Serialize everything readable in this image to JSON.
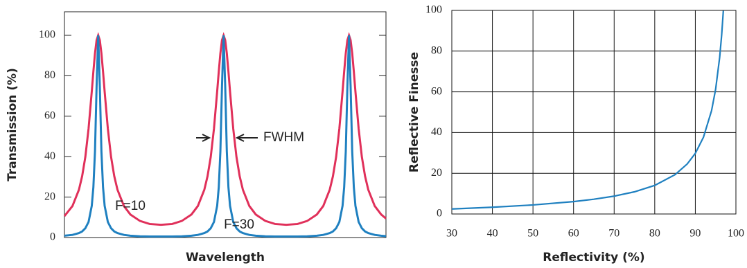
{
  "chart_data": [
    {
      "type": "line",
      "ylabel": "Transmission (%)",
      "xlabel": "Wavelength",
      "xlim": [
        0,
        100
      ],
      "ylim": [
        0,
        100
      ],
      "yticks": [
        0,
        20,
        40,
        60,
        80,
        100
      ],
      "grid": false,
      "annotations": [
        "FWHM"
      ],
      "x": [
        0,
        2.5,
        4.5,
        5.5,
        6.5,
        7.5,
        8.5,
        9,
        9.5,
        10,
        10.5,
        11,
        11.5,
        12,
        12.5,
        13.5,
        14.5,
        15.5,
        16.5,
        18.5,
        20.5,
        23.5,
        26.5,
        30,
        33.5,
        36.5,
        39.5,
        41.5,
        43.5,
        44.5,
        45.5,
        46.5,
        47.5,
        48,
        48.5,
        49,
        49.5,
        50,
        50.5,
        51,
        51.5,
        52.5,
        53.5,
        54.5,
        55.5,
        57.5,
        59.5,
        62.5,
        65.5,
        69,
        72.5,
        75.5,
        78.5,
        80.5,
        82.5,
        83.5,
        84.5,
        85.5,
        86.5,
        87,
        87.5,
        88,
        88.5,
        89,
        89.5,
        90,
        90.5,
        91.5,
        92.5,
        93.5,
        94.5,
        96.5,
        98.5,
        100
      ],
      "series": [
        {
          "name": "F=10",
          "color": "#e0305a",
          "values": [
            10.6,
            15.6,
            23.6,
            30.3,
            39.9,
            53.8,
            72.2,
            82.1,
            91.1,
            97.6,
            100,
            97.6,
            91.1,
            82.1,
            72.2,
            53.8,
            39.9,
            30.3,
            23.6,
            15.6,
            11.4,
            8.2,
            6.7,
            6.3,
            6.7,
            8.2,
            11.4,
            15.6,
            23.6,
            30.3,
            39.9,
            53.8,
            72.2,
            82.1,
            91.1,
            97.6,
            100,
            97.6,
            91.1,
            82.1,
            72.2,
            53.8,
            39.9,
            30.3,
            23.6,
            15.6,
            11.4,
            8.2,
            6.7,
            6.3,
            6.7,
            8.2,
            11.4,
            15.6,
            23.6,
            30.3,
            39.9,
            53.8,
            72.2,
            82.1,
            91.1,
            97.6,
            100,
            97.6,
            91.1,
            82.1,
            72.2,
            53.8,
            39.9,
            30.3,
            23.6,
            15.6,
            11.4,
            9.4
          ]
        },
        {
          "name": "F=30",
          "color": "#1f80c0",
          "values": [
            0.9,
            1.3,
            2.2,
            3.0,
            4.6,
            7.7,
            15.7,
            24.9,
            42.6,
            74.8,
            100,
            74.8,
            42.6,
            24.9,
            15.7,
            7.7,
            4.6,
            3.0,
            2.2,
            1.3,
            0.9,
            0.6,
            0.5,
            0.5,
            0.5,
            0.6,
            0.9,
            1.3,
            2.2,
            3.0,
            4.6,
            7.7,
            15.7,
            24.9,
            42.6,
            74.8,
            100,
            74.8,
            42.6,
            24.9,
            15.7,
            7.7,
            4.6,
            3.0,
            2.2,
            1.3,
            0.9,
            0.6,
            0.5,
            0.5,
            0.5,
            0.6,
            0.9,
            1.3,
            2.2,
            3.0,
            4.6,
            7.7,
            15.7,
            24.9,
            42.6,
            74.8,
            100,
            74.8,
            42.6,
            24.9,
            15.7,
            7.7,
            4.6,
            3.0,
            2.2,
            1.3,
            0.9,
            0.7
          ]
        }
      ]
    },
    {
      "type": "line",
      "ylabel": "Reflective Finesse",
      "xlabel": "Reflectivity (%)",
      "xlim": [
        30,
        100
      ],
      "xticks": [
        30,
        40,
        50,
        60,
        70,
        80,
        90,
        100
      ],
      "ylim": [
        0,
        100
      ],
      "yticks": [
        0,
        20,
        40,
        60,
        80,
        100
      ],
      "grid": true,
      "x": [
        30,
        40,
        50,
        60,
        65,
        70,
        75,
        80,
        85,
        88,
        90,
        92,
        94,
        95,
        96,
        96.5,
        96.9
      ],
      "series": [
        {
          "color": "#1f80c0",
          "values": [
            2.46,
            3.31,
            4.44,
            6.08,
            7.24,
            8.76,
            10.88,
            14.05,
            19.31,
            24.56,
            29.8,
            37.67,
            50.76,
            61.23,
            76.95,
            88.2,
            99.8
          ]
        }
      ]
    }
  ]
}
